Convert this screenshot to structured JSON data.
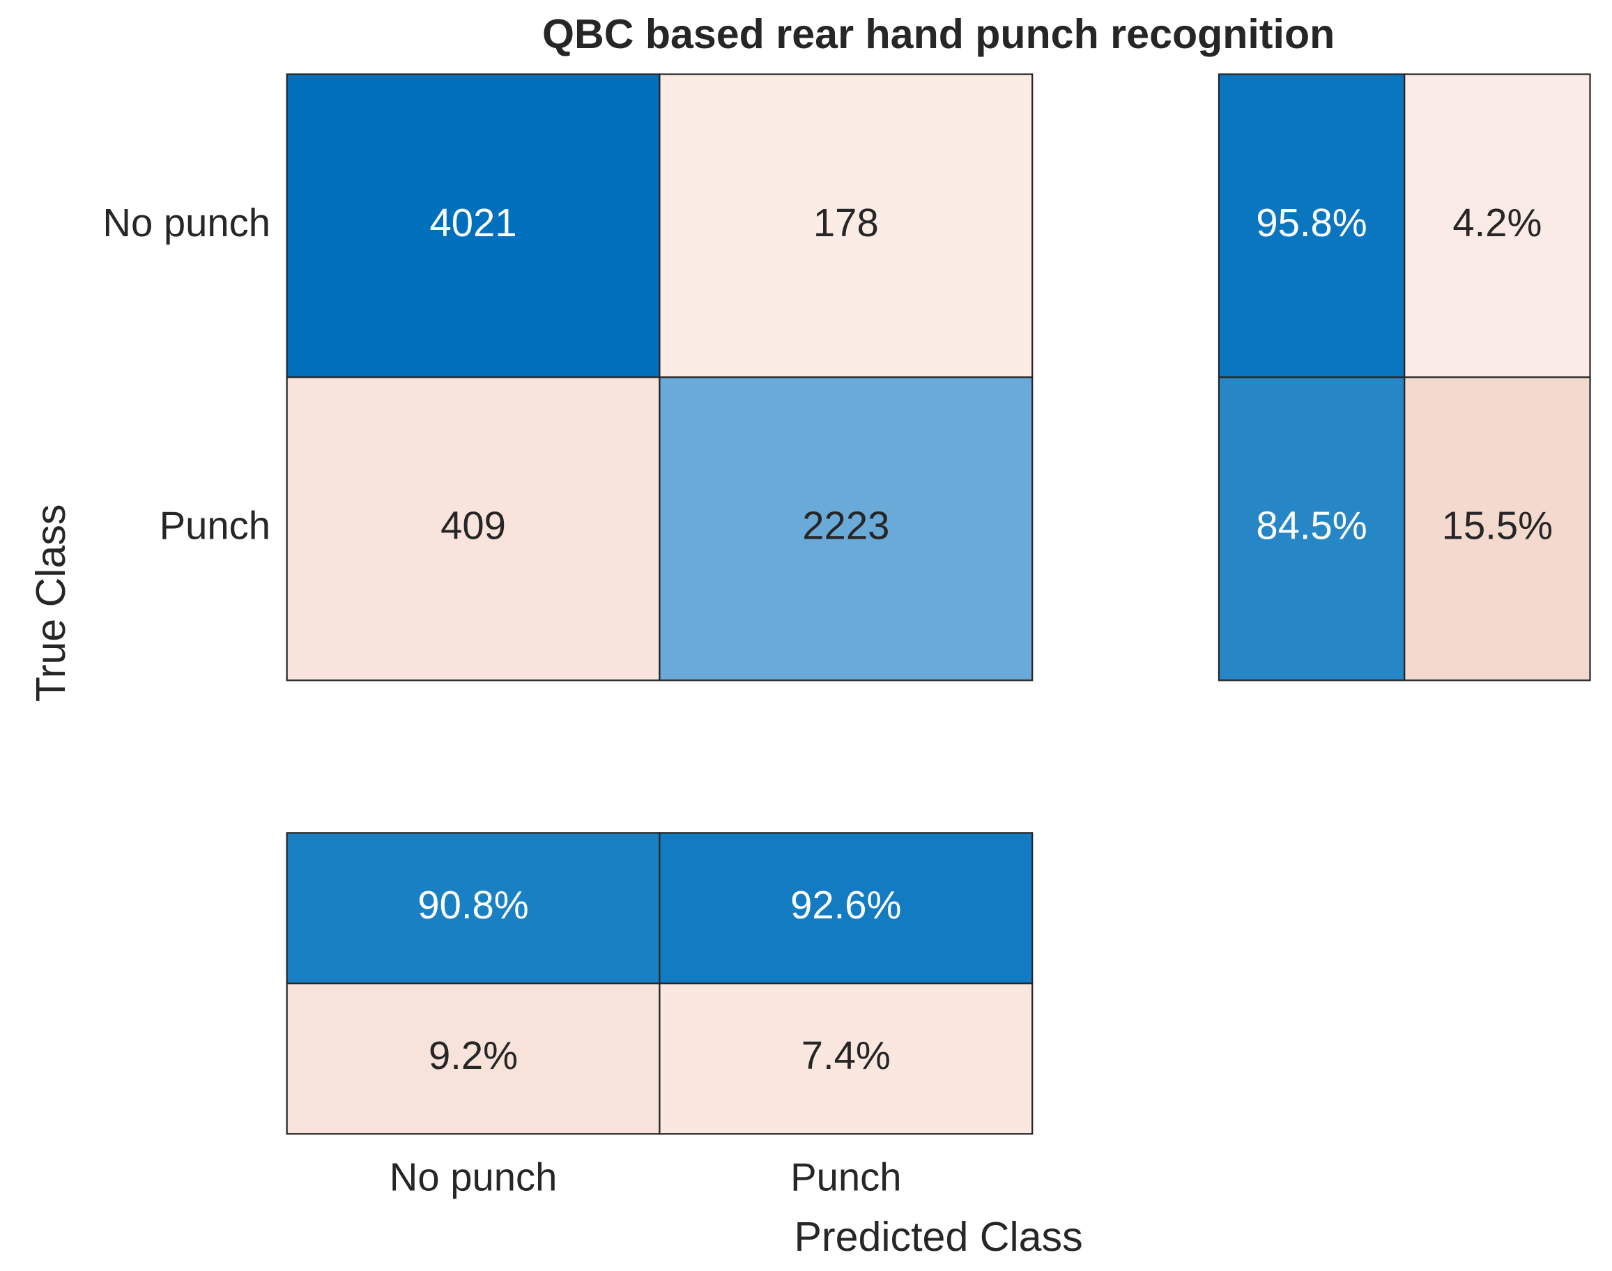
{
  "chart_data": {
    "type": "confusion_matrix",
    "title": "QBC based rear hand punch recognition",
    "xlabel": "Predicted Class",
    "ylabel": "True Class",
    "classes": [
      "No punch",
      "Punch"
    ],
    "matrix": [
      [
        4021,
        178
      ],
      [
        409,
        2223
      ]
    ],
    "matrix_colors": [
      [
        "#0070bc",
        "#fbece6"
      ],
      [
        "#f8e4dc",
        "#6aaad8"
      ]
    ],
    "row_summary": {
      "values": [
        [
          95.8,
          4.2
        ],
        [
          84.5,
          15.5
        ]
      ],
      "value_labels": [
        [
          "95.8%",
          "4.2%"
        ],
        [
          "84.5%",
          "15.5%"
        ]
      ],
      "colors": [
        [
          "#0b76c0",
          "#fbebe6"
        ],
        [
          "#2686c6",
          "#f4d9cf"
        ]
      ]
    },
    "column_summary": {
      "values": [
        [
          90.8,
          92.6
        ],
        [
          9.2,
          7.4
        ]
      ],
      "value_labels": [
        [
          "90.8%",
          "92.6%"
        ],
        [
          "9.2%",
          "7.4%"
        ]
      ],
      "colors": [
        [
          "#1a80c4",
          "#137bc2"
        ],
        [
          "#f8e3db",
          "#fae7e0"
        ]
      ]
    }
  }
}
